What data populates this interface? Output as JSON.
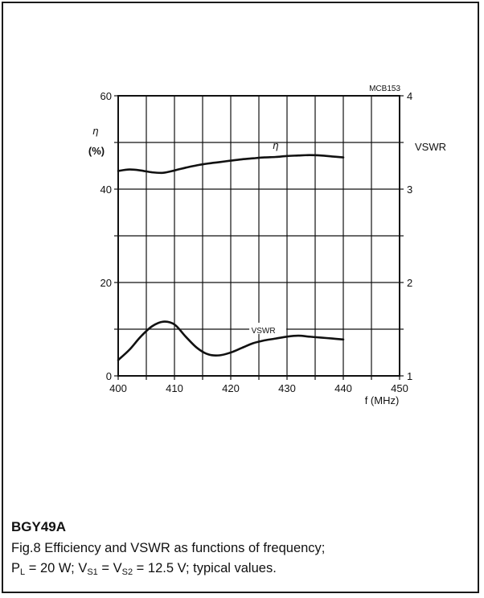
{
  "chart_data": {
    "type": "line",
    "figure_id": "MCB153",
    "x_axis": {
      "label": "f (MHz)",
      "range": [
        400,
        450
      ],
      "ticks": [
        "400",
        "410",
        "420",
        "430",
        "440",
        "450"
      ]
    },
    "y_left": {
      "label_symbol": "η",
      "label_unit": "(%)",
      "range": [
        0,
        60
      ],
      "ticks": [
        "0",
        "20",
        "40",
        "60"
      ]
    },
    "y_right": {
      "label": "VSWR",
      "range": [
        1,
        4
      ],
      "ticks": [
        "1",
        "2",
        "3",
        "4"
      ]
    },
    "grid": true,
    "series": [
      {
        "name": "η",
        "axis": "left",
        "x": [
          400,
          402,
          404,
          406,
          408,
          410,
          412,
          414,
          416,
          418,
          420,
          422,
          424,
          426,
          428,
          430,
          432,
          434,
          436,
          438,
          440
        ],
        "y": [
          43.9,
          44.2,
          44.0,
          43.6,
          43.5,
          44.0,
          44.6,
          45.1,
          45.5,
          45.8,
          46.1,
          46.4,
          46.6,
          46.8,
          46.9,
          47.1,
          47.2,
          47.3,
          47.2,
          47.0,
          46.8
        ]
      },
      {
        "name": "VSWR",
        "axis": "right",
        "x": [
          400,
          402,
          404,
          406,
          408,
          410,
          412,
          414,
          416,
          418,
          420,
          422,
          424,
          426,
          428,
          430,
          432,
          434,
          436,
          438,
          440
        ],
        "y": [
          1.17,
          1.28,
          1.42,
          1.53,
          1.58,
          1.55,
          1.42,
          1.3,
          1.23,
          1.22,
          1.25,
          1.3,
          1.35,
          1.38,
          1.4,
          1.42,
          1.43,
          1.42,
          1.41,
          1.4,
          1.39
        ]
      }
    ]
  },
  "caption": {
    "product_code": "BGY49A",
    "line1": "Fig.8 Efficiency and VSWR as functions of frequency;",
    "line2_parts": [
      "P",
      "L",
      " = 20 W; V",
      "S1",
      " = V",
      "S2",
      " = 12.5 V; typical values."
    ]
  }
}
